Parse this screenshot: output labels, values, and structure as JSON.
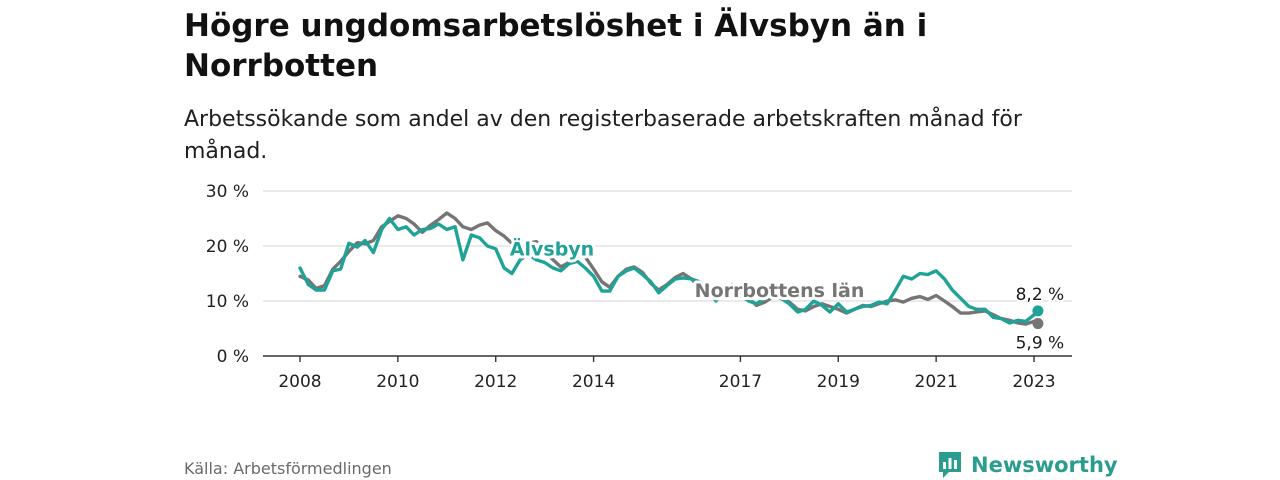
{
  "title": "Högre ungdomsarbetslöshet i Älvsbyn än i Norrbotten",
  "subtitle": "Arbetssökande som andel av den registerbaserade arbetskraften månad för månad.",
  "source": "Källa: Arbetsförmedlingen",
  "brand": {
    "name": "Newsworthy",
    "icon": "newsworthy-logo-icon"
  },
  "colors": {
    "alvsbyn": "#1fa297",
    "norrbotten": "#757575",
    "grid": "#dddddd",
    "axis": "#333333"
  },
  "chart_data": {
    "type": "line",
    "title": "Högre ungdomsarbetslöshet i Älvsbyn än i Norrbotten",
    "xlabel": "",
    "ylabel": "",
    "xlim": [
      2007.75,
      2023.5
    ],
    "ylim": [
      0,
      30
    ],
    "yticks": [
      0,
      10,
      20,
      30
    ],
    "ytick_labels": [
      "0 %",
      "10 %",
      "20 %",
      "30 %"
    ],
    "xticks": [
      2008,
      2010,
      2012,
      2014,
      2017,
      2019,
      2021,
      2023
    ],
    "xtick_labels": [
      "2008",
      "2010",
      "2012",
      "2014",
      "2017",
      "2019",
      "2021",
      "2023"
    ],
    "grid": true,
    "series": [
      {
        "name": "Norrbottens län",
        "label": "Norrbottens län",
        "color": "#757575",
        "end_label": "5,9 %",
        "end_value": 5.9,
        "x": [
          2008.0,
          2008.17,
          2008.33,
          2008.5,
          2008.67,
          2008.83,
          2009.0,
          2009.17,
          2009.33,
          2009.5,
          2009.67,
          2009.83,
          2010.0,
          2010.17,
          2010.33,
          2010.5,
          2010.67,
          2010.83,
          2011.0,
          2011.17,
          2011.33,
          2011.5,
          2011.67,
          2011.83,
          2012.0,
          2012.17,
          2012.33,
          2012.5,
          2012.67,
          2012.83,
          2013.0,
          2013.17,
          2013.33,
          2013.5,
          2013.67,
          2013.83,
          2014.0,
          2014.17,
          2014.33,
          2014.5,
          2014.67,
          2014.83,
          2015.0,
          2015.17,
          2015.33,
          2015.5,
          2015.67,
          2015.83,
          2016.0,
          2016.17,
          2016.33,
          2016.5,
          2016.67,
          2016.83,
          2017.0,
          2017.17,
          2017.33,
          2017.5,
          2017.67,
          2017.83,
          2018.0,
          2018.17,
          2018.33,
          2018.5,
          2018.67,
          2018.83,
          2019.0,
          2019.17,
          2019.33,
          2019.5,
          2019.67,
          2019.83,
          2020.0,
          2020.17,
          2020.33,
          2020.5,
          2020.67,
          2020.83,
          2021.0,
          2021.17,
          2021.33,
          2021.5,
          2021.67,
          2021.83,
          2022.0,
          2022.17,
          2022.33,
          2022.5,
          2022.67,
          2022.83,
          2023.0,
          2023.08
        ],
        "values": [
          14.5,
          13.8,
          12.3,
          12.8,
          15.8,
          17.2,
          19.0,
          20.6,
          20.4,
          21.0,
          23.5,
          24.5,
          25.5,
          25.0,
          24.0,
          22.5,
          23.8,
          24.8,
          26.0,
          25.0,
          23.5,
          23.0,
          23.8,
          24.2,
          22.8,
          21.8,
          20.5,
          19.8,
          20.5,
          20.8,
          19.0,
          17.5,
          16.2,
          17.0,
          18.5,
          18.0,
          15.8,
          13.5,
          12.5,
          14.5,
          15.8,
          16.2,
          15.2,
          13.2,
          12.0,
          13.0,
          14.3,
          15.0,
          14.0,
          12.5,
          11.5,
          11.0,
          11.5,
          12.0,
          11.8,
          10.5,
          9.2,
          9.8,
          10.8,
          10.5,
          9.8,
          8.5,
          8.2,
          9.0,
          9.5,
          9.0,
          8.5,
          7.8,
          8.5,
          9.2,
          9.0,
          9.5,
          10.0,
          10.2,
          9.8,
          10.5,
          10.8,
          10.3,
          11.0,
          10.0,
          9.0,
          7.8,
          7.8,
          8.0,
          8.2,
          7.5,
          6.8,
          6.5,
          6.0,
          5.8,
          6.3,
          5.9
        ]
      },
      {
        "name": "Älvsbyn",
        "label": "Älvsbyn",
        "color": "#1fa297",
        "end_label": "8,2 %",
        "end_value": 8.2,
        "x": [
          2008.0,
          2008.17,
          2008.33,
          2008.5,
          2008.67,
          2008.83,
          2009.0,
          2009.17,
          2009.33,
          2009.5,
          2009.67,
          2009.83,
          2010.0,
          2010.17,
          2010.33,
          2010.5,
          2010.67,
          2010.83,
          2011.0,
          2011.17,
          2011.33,
          2011.5,
          2011.67,
          2011.83,
          2012.0,
          2012.17,
          2012.33,
          2012.5,
          2012.67,
          2012.83,
          2013.0,
          2013.17,
          2013.33,
          2013.5,
          2013.67,
          2013.83,
          2014.0,
          2014.17,
          2014.33,
          2014.5,
          2014.67,
          2014.83,
          2015.0,
          2015.17,
          2015.33,
          2015.5,
          2015.67,
          2015.83,
          2016.0,
          2016.17,
          2016.33,
          2016.5,
          2016.67,
          2016.83,
          2017.0,
          2017.17,
          2017.33,
          2017.5,
          2017.67,
          2017.83,
          2018.0,
          2018.17,
          2018.33,
          2018.5,
          2018.67,
          2018.83,
          2019.0,
          2019.17,
          2019.33,
          2019.5,
          2019.67,
          2019.83,
          2020.0,
          2020.17,
          2020.33,
          2020.5,
          2020.67,
          2020.83,
          2021.0,
          2021.17,
          2021.33,
          2021.5,
          2021.67,
          2021.83,
          2022.0,
          2022.17,
          2022.33,
          2022.5,
          2022.67,
          2022.83,
          2023.0,
          2023.08
        ],
        "values": [
          16.0,
          13.0,
          12.0,
          12.0,
          15.5,
          15.8,
          20.5,
          19.8,
          21.0,
          18.8,
          23.0,
          25.0,
          23.0,
          23.5,
          22.0,
          23.0,
          23.2,
          24.0,
          23.0,
          23.5,
          17.5,
          22.0,
          21.5,
          20.0,
          19.5,
          16.0,
          15.0,
          17.5,
          18.5,
          17.5,
          17.0,
          16.0,
          15.5,
          16.8,
          17.2,
          16.0,
          14.5,
          11.8,
          11.8,
          14.5,
          15.5,
          16.0,
          14.8,
          13.5,
          11.5,
          12.8,
          14.0,
          14.2,
          14.0,
          13.5,
          12.5,
          10.0,
          12.0,
          13.0,
          11.0,
          10.0,
          9.5,
          10.5,
          11.0,
          10.5,
          9.5,
          8.0,
          8.5,
          10.0,
          9.2,
          8.0,
          9.5,
          8.0,
          8.5,
          9.0,
          9.2,
          9.8,
          9.5,
          12.0,
          14.5,
          14.0,
          15.0,
          14.8,
          15.5,
          14.0,
          12.0,
          10.5,
          9.0,
          8.5,
          8.5,
          7.0,
          6.8,
          6.0,
          6.5,
          6.3,
          7.5,
          8.2
        ]
      }
    ],
    "annotations": [
      {
        "text": "Älvsbyn",
        "series": "Älvsbyn",
        "x": 2013.15,
        "y": 18.3
      },
      {
        "text": "Norrbottens län",
        "series": "Norrbottens län",
        "x": 2017.8,
        "y": 10.7
      }
    ]
  }
}
